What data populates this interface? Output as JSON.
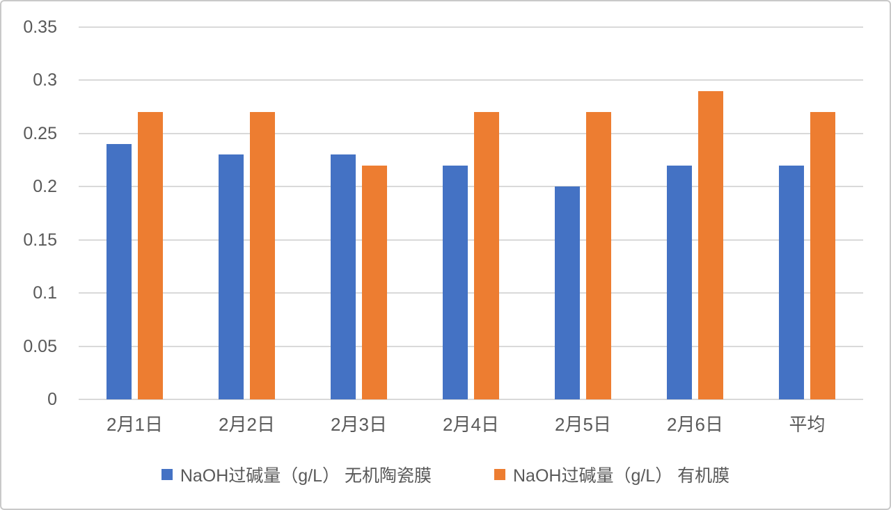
{
  "colors": {
    "series_blue": "#4472C4",
    "series_orange": "#ED7D31",
    "gridline": "#D9D9D9",
    "axis_text": "#595959",
    "frame_border": "#C9C9C9",
    "background": "#FFFFFF"
  },
  "chart_data": {
    "type": "bar",
    "title": "",
    "xlabel": "",
    "ylabel": "",
    "categories": [
      "2月1日",
      "2月2日",
      "2月3日",
      "2月4日",
      "2月5日",
      "2月6日",
      "平均"
    ],
    "series": [
      {
        "name": "NaOH过碱量（g/L） 无机陶瓷膜",
        "color": "#4472C4",
        "values": [
          0.24,
          0.23,
          0.23,
          0.22,
          0.2,
          0.22,
          0.22
        ]
      },
      {
        "name": "NaOH过碱量（g/L） 有机膜",
        "color": "#ED7D31",
        "values": [
          0.27,
          0.27,
          0.22,
          0.27,
          0.27,
          0.29,
          0.27
        ]
      }
    ],
    "ylim": [
      0,
      0.35
    ],
    "ytick_step": 0.05,
    "ytick_labels": [
      "0",
      "0.05",
      "0.1",
      "0.15",
      "0.2",
      "0.25",
      "0.3",
      "0.35"
    ],
    "grid": true,
    "legend_position": "bottom"
  }
}
